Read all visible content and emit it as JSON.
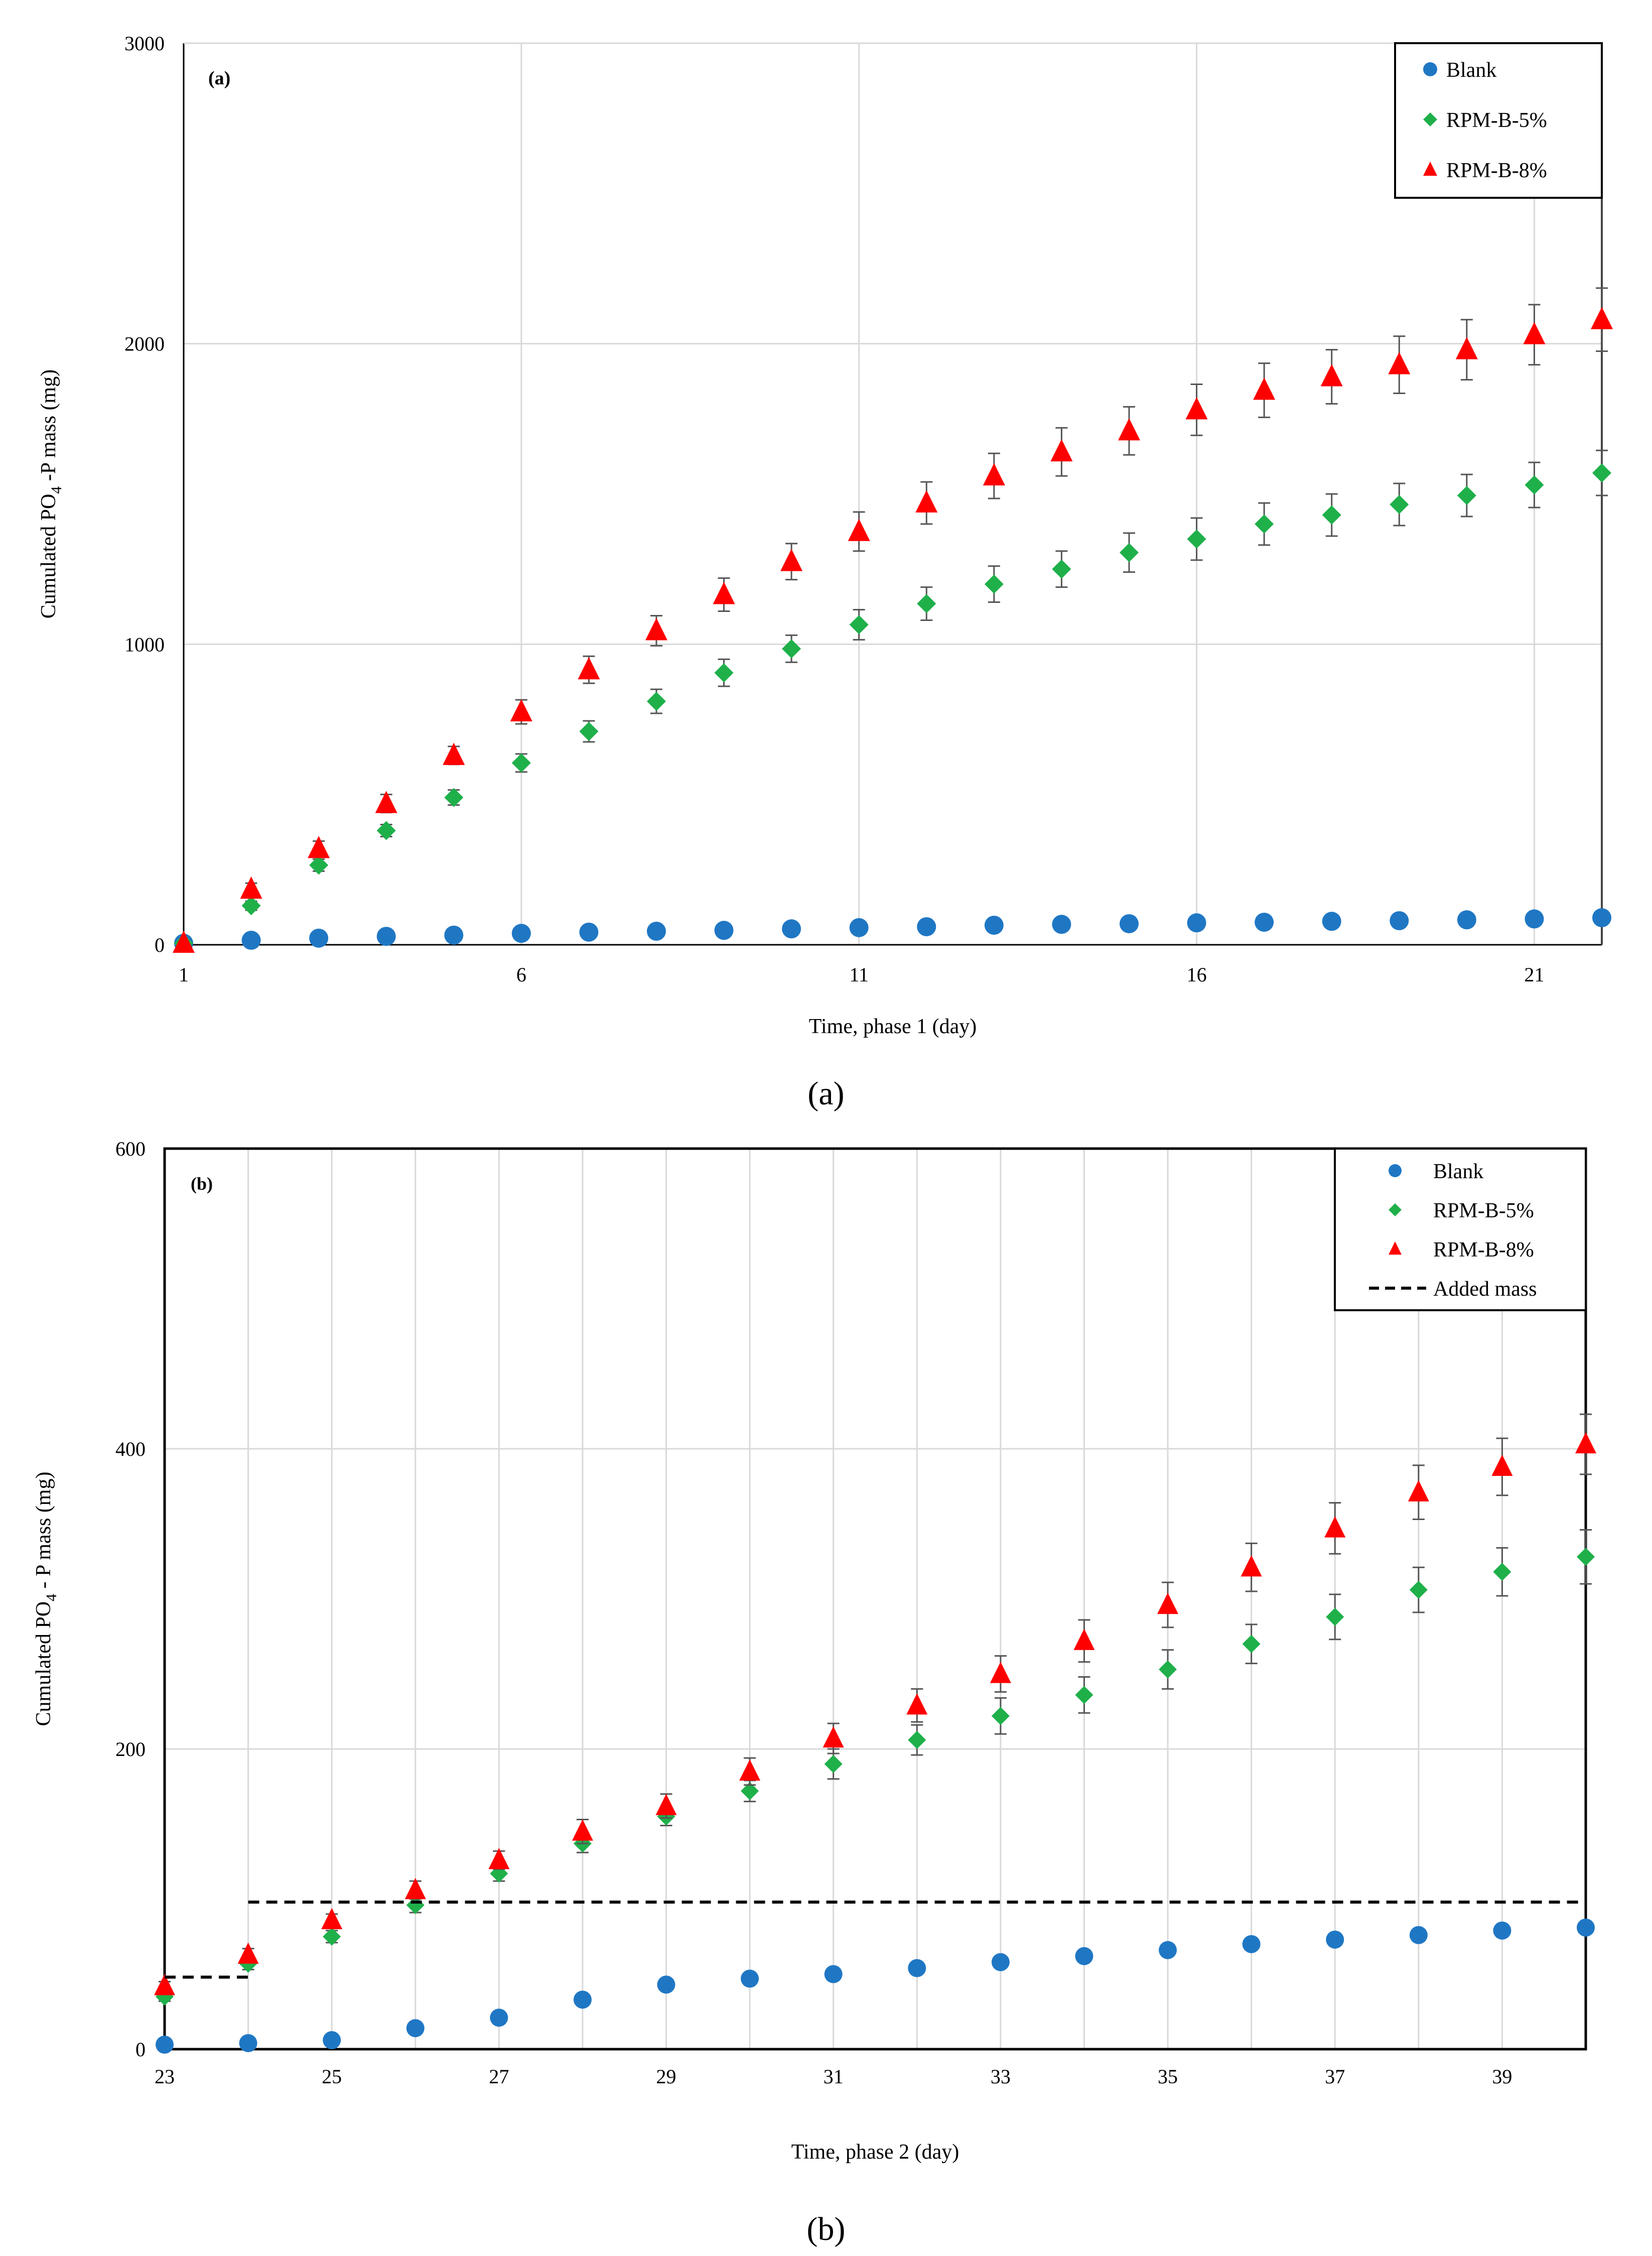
{
  "colors": {
    "blank": "#1f77c4",
    "rpm5": "#1fb04a",
    "rpm8": "#ff0000",
    "grid": "#d9d9d9",
    "axis": "#000000",
    "error_bar": "#555555"
  },
  "chart_data": [
    {
      "type": "scatter",
      "panel_label": "(a)",
      "caption": "(a)",
      "xlabel": "Time,  phase  1 (day)",
      "ylabel_parts": [
        "Cumulated  PO",
        "4",
        " -P mass  (mg)"
      ],
      "xlim": [
        1,
        22
      ],
      "ylim": [
        0,
        3000
      ],
      "xticks": [
        1,
        6,
        11,
        16,
        21
      ],
      "yticks": [
        0,
        1000,
        2000,
        3000
      ],
      "grid": true,
      "legend_position": "top-right",
      "series": [
        {
          "name": "Blank",
          "marker": "circle",
          "color_key": "blank",
          "x": [
            1,
            2,
            3,
            4,
            5,
            6,
            7,
            8,
            9,
            10,
            11,
            12,
            13,
            14,
            15,
            16,
            17,
            18,
            19,
            20,
            21,
            22
          ],
          "y": [
            5,
            15,
            22,
            28,
            32,
            38,
            42,
            45,
            48,
            53,
            57,
            60,
            65,
            68,
            70,
            73,
            75,
            78,
            80,
            83,
            86,
            90
          ],
          "err": []
        },
        {
          "name": "RPM-B-5%",
          "marker": "diamond",
          "color_key": "rpm5",
          "x": [
            1,
            2,
            3,
            4,
            5,
            6,
            7,
            8,
            9,
            10,
            11,
            12,
            13,
            14,
            15,
            16,
            17,
            18,
            19,
            20,
            21,
            22
          ],
          "y": [
            5,
            130,
            265,
            380,
            490,
            605,
            710,
            810,
            905,
            985,
            1065,
            1135,
            1200,
            1250,
            1305,
            1350,
            1400,
            1430,
            1465,
            1495,
            1530,
            1570
          ],
          "err": [
            0,
            15,
            20,
            20,
            25,
            30,
            35,
            40,
            45,
            45,
            50,
            55,
            60,
            60,
            65,
            70,
            70,
            70,
            70,
            70,
            75,
            75
          ]
        },
        {
          "name": "RPM-B-8%",
          "marker": "triangle",
          "color_key": "rpm8",
          "x": [
            1,
            2,
            3,
            4,
            5,
            6,
            7,
            8,
            9,
            10,
            11,
            12,
            13,
            14,
            15,
            16,
            17,
            18,
            19,
            20,
            21,
            22
          ],
          "y": [
            5,
            185,
            320,
            470,
            630,
            775,
            915,
            1045,
            1165,
            1275,
            1375,
            1470,
            1560,
            1640,
            1710,
            1780,
            1845,
            1890,
            1930,
            1980,
            2030,
            2080
          ],
          "err": [
            0,
            20,
            25,
            30,
            30,
            40,
            45,
            50,
            55,
            60,
            65,
            70,
            75,
            80,
            80,
            85,
            90,
            90,
            95,
            100,
            100,
            105
          ]
        }
      ]
    },
    {
      "type": "scatter",
      "panel_label": "(b)",
      "caption": "(b)",
      "xlabel": "Time,  phase  2 (day)",
      "ylabel_parts": [
        "Cumulated  PO",
        "4",
        " - P mass (mg)"
      ],
      "xlim": [
        23,
        40
      ],
      "ylim": [
        0,
        600
      ],
      "xticks": [
        23,
        25,
        27,
        29,
        31,
        33,
        35,
        37,
        39
      ],
      "yticks": [
        0,
        200,
        400,
        600
      ],
      "grid": true,
      "legend_position": "top-right",
      "series": [
        {
          "name": "Blank",
          "marker": "circle",
          "color_key": "blank",
          "x": [
            23,
            24,
            25,
            26,
            27,
            28,
            29,
            30,
            31,
            32,
            33,
            34,
            35,
            36,
            37,
            38,
            39,
            40
          ],
          "y": [
            3,
            4,
            6,
            14,
            21,
            33,
            43,
            47,
            50,
            54,
            58,
            62,
            66,
            70,
            73,
            76,
            79,
            81
          ],
          "err": []
        },
        {
          "name": "RPM-B-5%",
          "marker": "diamond",
          "color_key": "rpm5",
          "x": [
            23,
            24,
            25,
            26,
            27,
            28,
            29,
            30,
            31,
            32,
            33,
            34,
            35,
            36,
            37,
            38,
            39,
            40
          ],
          "y": [
            35,
            57,
            75,
            96,
            117,
            137,
            155,
            172,
            190,
            206,
            222,
            236,
            253,
            270,
            288,
            306,
            318,
            328
          ],
          "err": [
            3,
            4,
            4,
            5,
            5,
            6,
            6,
            7,
            10,
            10,
            12,
            12,
            13,
            13,
            15,
            15,
            16,
            18
          ]
        },
        {
          "name": "RPM-B-8%",
          "marker": "triangle",
          "color_key": "rpm8",
          "x": [
            23,
            24,
            25,
            26,
            27,
            28,
            29,
            30,
            31,
            32,
            33,
            34,
            35,
            36,
            37,
            38,
            39,
            40
          ],
          "y": [
            42,
            63,
            86,
            106,
            126,
            145,
            162,
            185,
            207,
            229,
            250,
            272,
            296,
            321,
            347,
            371,
            388,
            403
          ],
          "err": [
            3,
            4,
            4,
            6,
            6,
            8,
            8,
            9,
            10,
            11,
            12,
            14,
            15,
            16,
            17,
            18,
            19,
            20
          ]
        },
        {
          "name": "Added mass",
          "marker": "dashed-line",
          "type": "step",
          "x": [
            23,
            24,
            24,
            40
          ],
          "y": [
            48,
            48,
            98,
            98
          ]
        }
      ]
    }
  ]
}
